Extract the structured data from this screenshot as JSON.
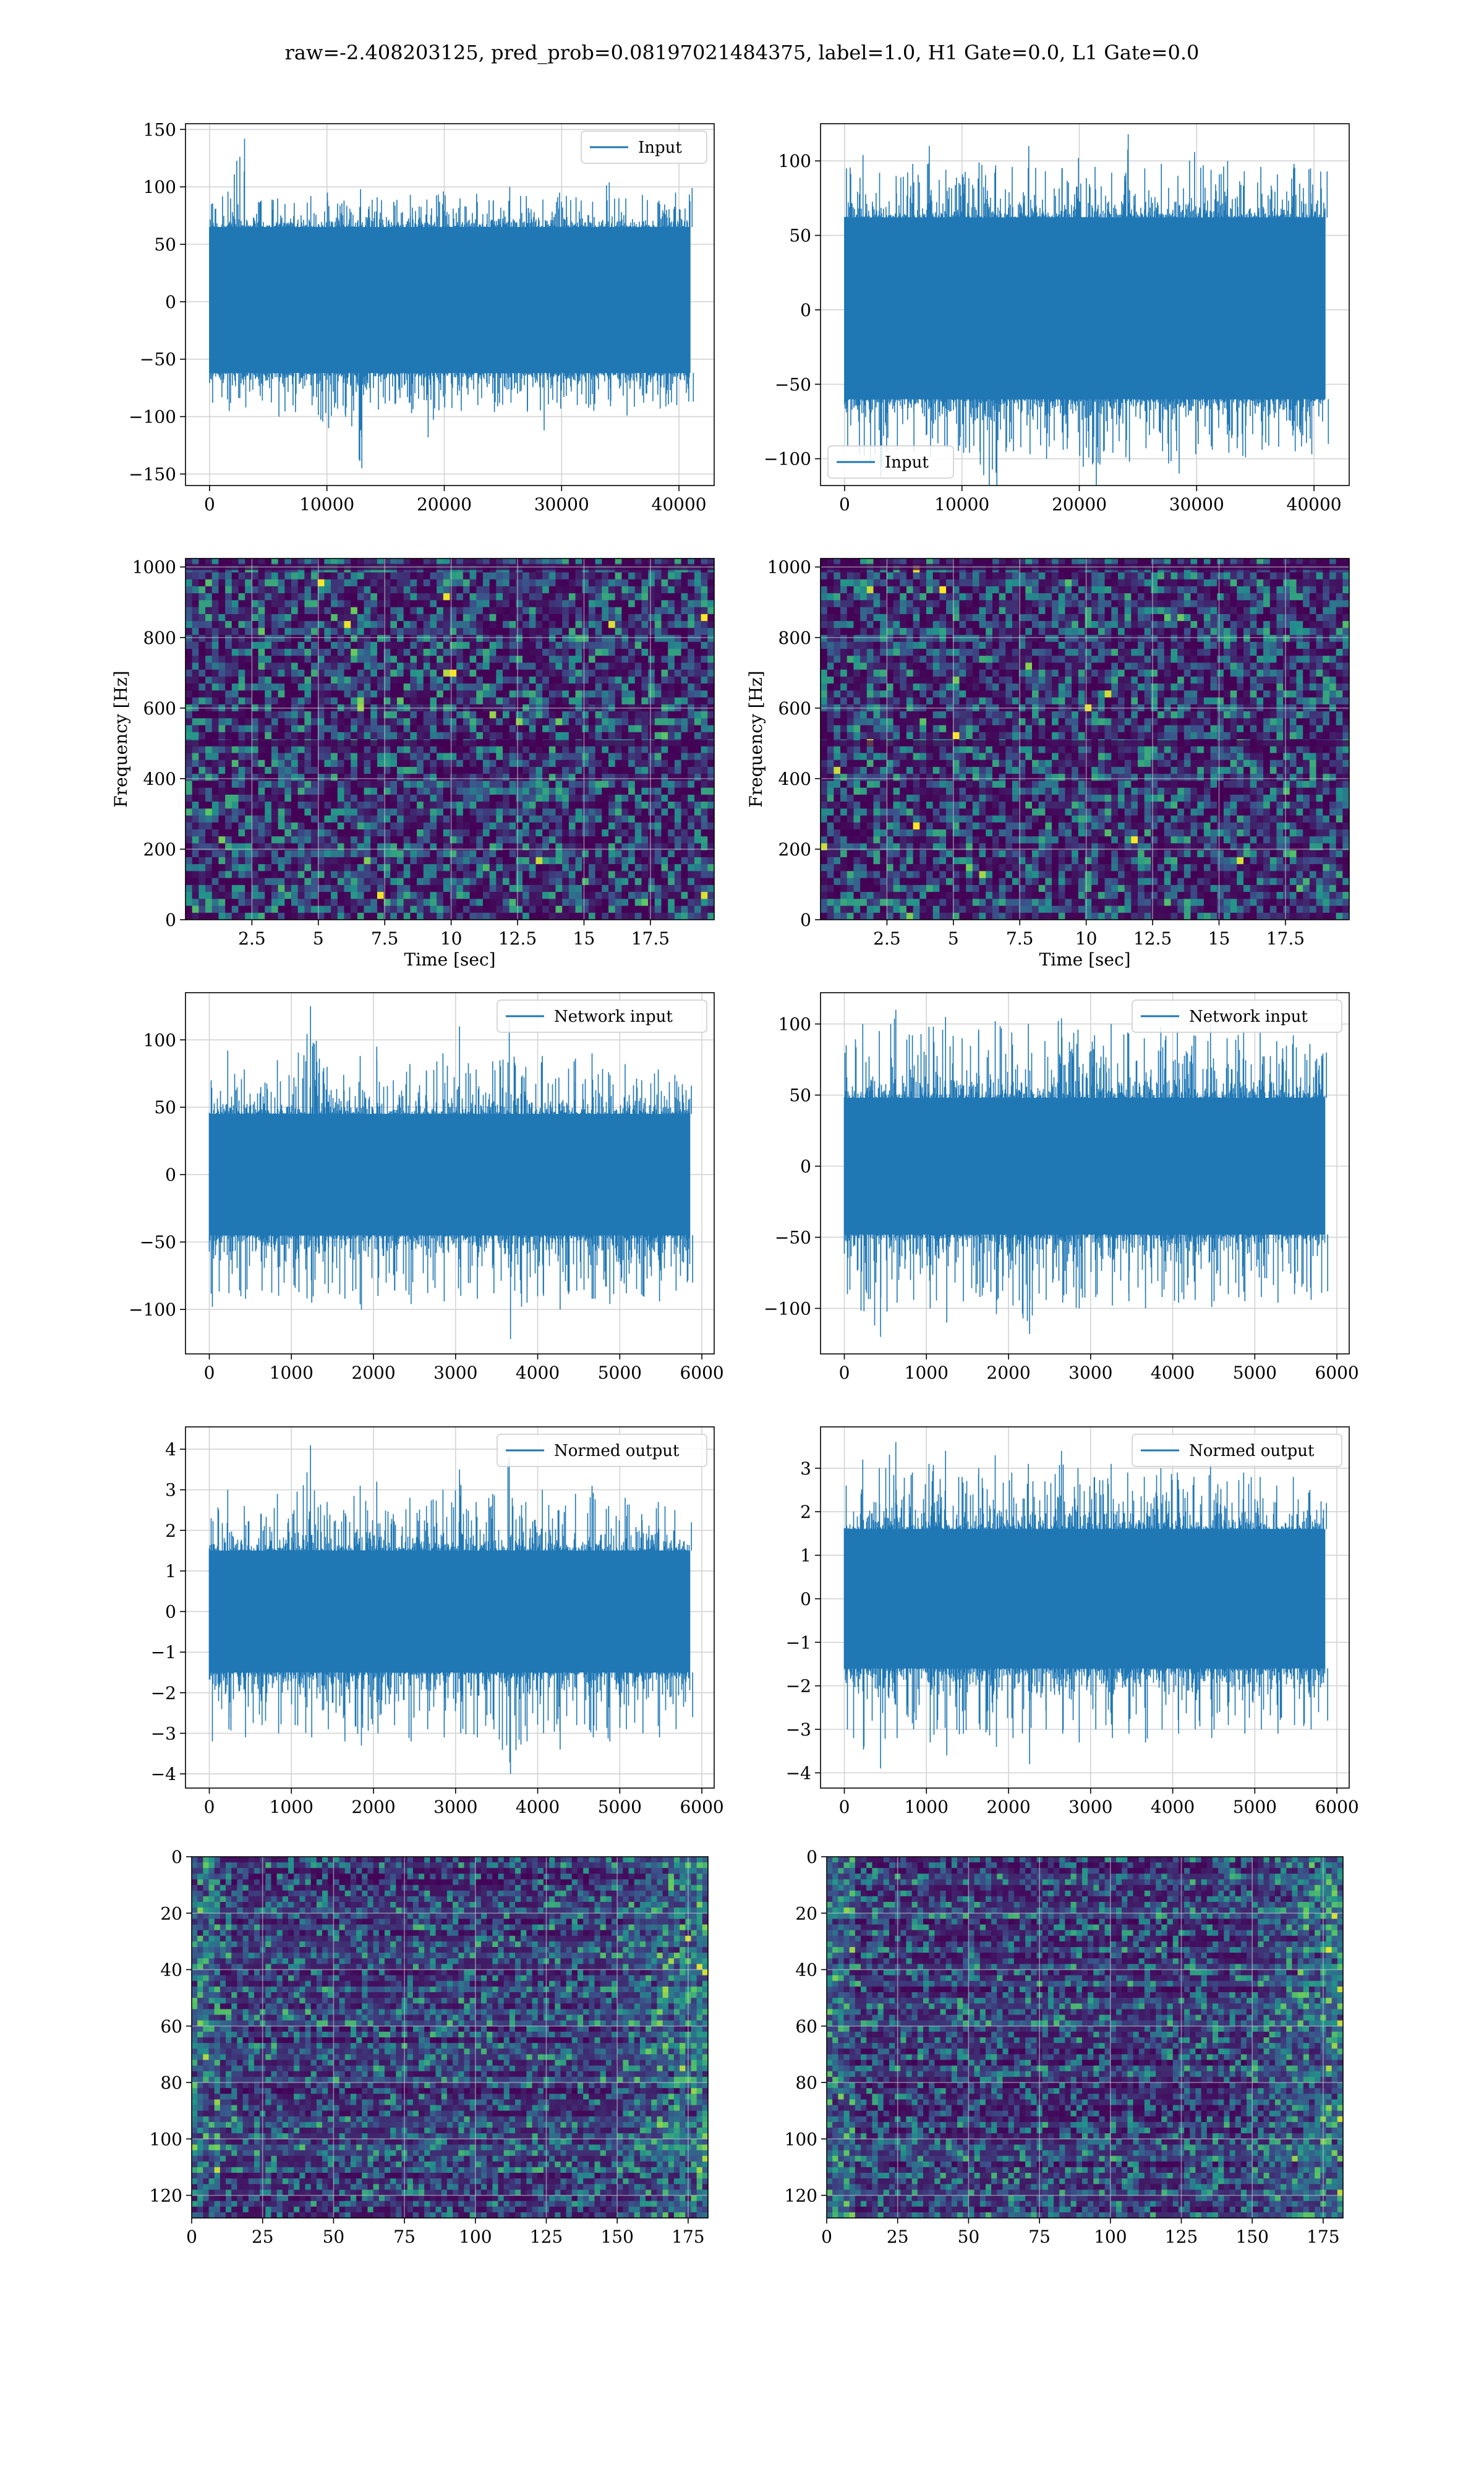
{
  "figure": {
    "title": "raw=-2.408203125, pred_prob=0.08197021484375, label=1.0, H1 Gate=0.0, L1 Gate=0.0"
  },
  "colors": {
    "line": "#1f77b4",
    "grid": "#d3d3d3",
    "heatmap_low": "#440154",
    "heatmap_mid": "#21918c",
    "heatmap_high": "#fde725"
  },
  "chart_data": [
    {
      "id": "input-h1",
      "type": "line",
      "title": "",
      "xlabel": "",
      "ylabel": "",
      "xlim": [
        -2050,
        43000
      ],
      "ylim": [
        -160,
        155
      ],
      "xticks": [
        0,
        10000,
        20000,
        30000,
        40000
      ],
      "yticks": [
        -150,
        -100,
        -50,
        0,
        50,
        100,
        150
      ],
      "grid": true,
      "legend": "top-right",
      "series": [
        {
          "name": "Input",
          "x_start": 0,
          "x_end": 40960,
          "envelope_upper": [
            85,
            96,
            142,
            88,
            90,
            86,
            92,
            95,
            88,
            98,
            91,
            87,
            93,
            89,
            96,
            90,
            94,
            88,
            100,
            92,
            89,
            95,
            91,
            87,
            104,
            90,
            93,
            88,
            95,
            99
          ],
          "envelope_lower": [
            -88,
            -95,
            -92,
            -86,
            -100,
            -96,
            -90,
            -110,
            -98,
            -145,
            -94,
            -89,
            -97,
            -118,
            -92,
            -95,
            -90,
            -96,
            -88,
            -94,
            -112,
            -93,
            -90,
            -95,
            -91,
            -99,
            -88,
            -93,
            -90,
            -87
          ],
          "dense_band": [
            -62,
            65
          ]
        }
      ]
    },
    {
      "id": "input-l1",
      "type": "line",
      "title": "",
      "xlabel": "",
      "ylabel": "",
      "xlim": [
        -2050,
        43000
      ],
      "ylim": [
        -118,
        125
      ],
      "xticks": [
        0,
        10000,
        20000,
        30000,
        40000
      ],
      "yticks": [
        -100,
        -50,
        0,
        50,
        100
      ],
      "grid": true,
      "legend": "bottom-left",
      "series": [
        {
          "name": "Input",
          "x_start": 0,
          "x_end": 40960,
          "envelope_upper": [
            95,
            104,
            92,
            90,
            98,
            110,
            94,
            91,
            99,
            97,
            96,
            110,
            93,
            95,
            102,
            96,
            92,
            118,
            95,
            98,
            90,
            106,
            94,
            100,
            93,
            96,
            91,
            98,
            95,
            93
          ],
          "envelope_lower": [
            -92,
            -98,
            -112,
            -94,
            -95,
            -99,
            -93,
            -96,
            -104,
            -128,
            -95,
            -97,
            -100,
            -94,
            -98,
            -121,
            -96,
            -102,
            -93,
            -95,
            -110,
            -97,
            -94,
            -96,
            -99,
            -94,
            -92,
            -95,
            -97,
            -90
          ],
          "dense_band": [
            -60,
            62
          ]
        }
      ]
    },
    {
      "id": "spectrogram-h1",
      "type": "heatmap",
      "title": "",
      "xlabel": "Time [sec]",
      "ylabel": "Frequency [Hz]",
      "xlim": [
        0,
        19.9
      ],
      "ylim": [
        0,
        1024
      ],
      "xticks": [
        2.5,
        5.0,
        7.5,
        10.0,
        12.5,
        15.0,
        17.5
      ],
      "yticks": [
        0,
        200,
        400,
        600,
        800,
        1000
      ],
      "grid": true,
      "cols": 80,
      "rows": 52,
      "seed": 11,
      "dark_rows_hz": [
        500,
        1000
      ]
    },
    {
      "id": "spectrogram-l1",
      "type": "heatmap",
      "title": "",
      "xlabel": "Time [sec]",
      "ylabel": "Frequency [Hz]",
      "xlim": [
        0,
        19.9
      ],
      "ylim": [
        0,
        1024
      ],
      "xticks": [
        2.5,
        5.0,
        7.5,
        10.0,
        12.5,
        15.0,
        17.5
      ],
      "yticks": [
        0,
        200,
        400,
        600,
        800,
        1000
      ],
      "grid": true,
      "cols": 80,
      "rows": 52,
      "seed": 23,
      "dark_rows_hz": [
        500,
        1000
      ]
    },
    {
      "id": "network-input-h1",
      "type": "line",
      "title": "",
      "xlabel": "",
      "ylabel": "",
      "xlim": [
        -290,
        6150
      ],
      "ylim": [
        -133,
        135
      ],
      "xticks": [
        0,
        1000,
        2000,
        3000,
        4000,
        5000,
        6000
      ],
      "yticks": [
        -100,
        -50,
        0,
        50,
        100
      ],
      "grid": true,
      "legend": "top-right",
      "series": [
        {
          "name": "Network input",
          "x_start": 0,
          "x_end": 5850,
          "envelope_upper": [
            70,
            92,
            78,
            65,
            85,
            72,
            125,
            80,
            74,
            88,
            95,
            70,
            82,
            76,
            90,
            110,
            78,
            84,
            115,
            80,
            88,
            72,
            86,
            90,
            76,
            82,
            70,
            78,
            74,
            66
          ],
          "envelope_lower": [
            -98,
            -88,
            -92,
            -86,
            -90,
            -84,
            -95,
            -88,
            -92,
            -100,
            -90,
            -86,
            -96,
            -88,
            -94,
            -90,
            -92,
            -88,
            -122,
            -95,
            -90,
            -100,
            -86,
            -92,
            -96,
            -88,
            -90,
            -94,
            -86,
            -80
          ],
          "dense_band": [
            -45,
            45
          ]
        }
      ]
    },
    {
      "id": "network-input-l1",
      "type": "line",
      "title": "",
      "xlabel": "",
      "ylabel": "",
      "xlim": [
        -290,
        6150
      ],
      "ylim": [
        -132,
        122
      ],
      "xticks": [
        0,
        1000,
        2000,
        3000,
        4000,
        5000,
        6000
      ],
      "yticks": [
        -100,
        -50,
        0,
        50,
        100
      ],
      "grid": true,
      "legend": "top-right",
      "series": [
        {
          "name": "Network input",
          "x_start": 0,
          "x_end": 5850,
          "envelope_upper": [
            85,
            100,
            95,
            110,
            92,
            98,
            105,
            90,
            96,
            102,
            94,
            100,
            88,
            104,
            96,
            92,
            100,
            94,
            90,
            98,
            95,
            92,
            100,
            90,
            96,
            94,
            88,
            92,
            86,
            80
          ],
          "envelope_lower": [
            -90,
            -102,
            -120,
            -96,
            -94,
            -100,
            -110,
            -95,
            -92,
            -104,
            -98,
            -118,
            -94,
            -96,
            -100,
            -92,
            -98,
            -95,
            -100,
            -92,
            -96,
            -94,
            -99,
            -90,
            -95,
            -92,
            -96,
            -90,
            -94,
            -88
          ],
          "dense_band": [
            -48,
            48
          ]
        }
      ]
    },
    {
      "id": "normed-output-h1",
      "type": "line",
      "title": "",
      "xlabel": "",
      "ylabel": "",
      "xlim": [
        -290,
        6150
      ],
      "ylim": [
        -4.35,
        4.55
      ],
      "xticks": [
        0,
        1000,
        2000,
        3000,
        4000,
        5000,
        6000
      ],
      "yticks": [
        -4,
        -3,
        -2,
        -1,
        0,
        1,
        2,
        3,
        4
      ],
      "grid": true,
      "legend": "top-right",
      "series": [
        {
          "name": "Normed output",
          "x_start": 0,
          "x_end": 5850,
          "envelope_upper": [
            2.3,
            3.0,
            2.6,
            2.4,
            2.9,
            2.5,
            4.1,
            2.7,
            2.5,
            3.1,
            3.2,
            2.4,
            2.8,
            2.6,
            3.0,
            3.5,
            2.7,
            2.9,
            3.8,
            2.7,
            3.0,
            2.5,
            2.9,
            3.1,
            2.6,
            2.8,
            2.4,
            2.7,
            2.5,
            2.2
          ],
          "envelope_lower": [
            -3.2,
            -2.9,
            -3.1,
            -2.8,
            -3.0,
            -2.8,
            -3.1,
            -2.9,
            -3.2,
            -3.3,
            -3.0,
            -2.8,
            -3.2,
            -2.9,
            -3.1,
            -3.0,
            -3.1,
            -2.9,
            -4.0,
            -3.2,
            -3.0,
            -3.4,
            -2.8,
            -3.1,
            -3.2,
            -2.9,
            -3.0,
            -3.1,
            -2.9,
            -2.6
          ],
          "dense_band": [
            -1.5,
            1.5
          ]
        }
      ]
    },
    {
      "id": "normed-output-l1",
      "type": "line",
      "title": "",
      "xlabel": "",
      "ylabel": "",
      "xlim": [
        -290,
        6150
      ],
      "ylim": [
        -4.35,
        3.95
      ],
      "xticks": [
        0,
        1000,
        2000,
        3000,
        4000,
        5000,
        6000
      ],
      "yticks": [
        -4,
        -3,
        -2,
        -1,
        0,
        1,
        2,
        3
      ],
      "grid": true,
      "legend": "top-right",
      "series": [
        {
          "name": "Normed output",
          "x_start": 0,
          "x_end": 5850,
          "envelope_upper": [
            2.6,
            3.2,
            3.0,
            3.6,
            2.9,
            3.1,
            3.4,
            2.8,
            3.0,
            3.3,
            2.9,
            3.1,
            2.7,
            3.4,
            3.0,
            2.8,
            3.1,
            2.9,
            2.8,
            3.0,
            2.9,
            2.8,
            3.1,
            2.7,
            2.9,
            2.8,
            2.6,
            2.8,
            2.5,
            2.2
          ],
          "envelope_lower": [
            -3.0,
            -3.4,
            -3.9,
            -3.2,
            -3.0,
            -3.3,
            -3.6,
            -3.1,
            -3.0,
            -3.4,
            -3.2,
            -3.8,
            -3.0,
            -3.1,
            -3.3,
            -3.0,
            -3.2,
            -3.1,
            -3.3,
            -3.0,
            -3.1,
            -3.0,
            -3.2,
            -2.9,
            -3.1,
            -3.0,
            -3.1,
            -2.9,
            -3.0,
            -2.8
          ],
          "dense_band": [
            -1.6,
            1.6
          ]
        }
      ]
    },
    {
      "id": "feature-map-h1",
      "type": "heatmap",
      "title": "",
      "xlabel": "",
      "ylabel": "",
      "xlim": [
        0,
        182
      ],
      "ylim": [
        128,
        0
      ],
      "xticks": [
        0,
        25,
        50,
        75,
        100,
        125,
        150,
        175
      ],
      "yticks": [
        0,
        20,
        40,
        60,
        80,
        100,
        120
      ],
      "grid": true,
      "cols": 91,
      "rows": 64,
      "seed": 37,
      "row_striped": true
    },
    {
      "id": "feature-map-l1",
      "type": "heatmap",
      "title": "",
      "xlabel": "",
      "ylabel": "",
      "xlim": [
        0,
        182
      ],
      "ylim": [
        128,
        0
      ],
      "xticks": [
        0,
        25,
        50,
        75,
        100,
        125,
        150,
        175
      ],
      "yticks": [
        0,
        20,
        40,
        60,
        80,
        100,
        120
      ],
      "grid": true,
      "cols": 91,
      "rows": 64,
      "seed": 53,
      "row_striped": true
    }
  ]
}
